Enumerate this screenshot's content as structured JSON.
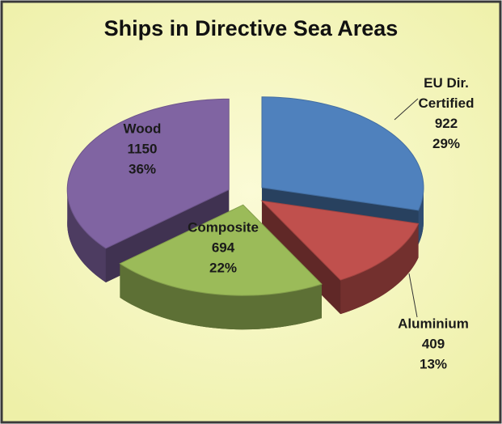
{
  "chart_data": {
    "type": "pie3d",
    "title": "Ships in Directive Sea Areas",
    "categories": [
      "EU Dir. Certified",
      "Aluminium",
      "Composite",
      "Wood"
    ],
    "values": [
      922,
      409,
      694,
      1150
    ],
    "percent_labels": [
      "29%",
      "13%",
      "22%",
      "36%"
    ],
    "colors": [
      "#4f81bd",
      "#c0504d",
      "#9bbb59",
      "#8064a2"
    ]
  }
}
